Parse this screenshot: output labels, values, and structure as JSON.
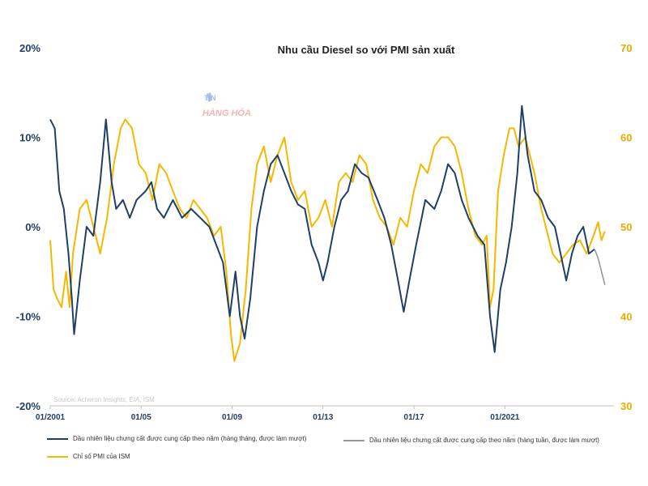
{
  "chart_data": {
    "type": "line",
    "title": "Nhu cầu Diesel so với PMI sản xuất",
    "source": "Source: Acheron Insights, EIA, ISM",
    "watermark": "TIN HÀNG HÓA",
    "x_tick_labels": [
      "01/2001",
      "01/05",
      "01/09",
      "01/13",
      "01/17",
      "01/2021"
    ],
    "x_tick_years": [
      2001,
      2005,
      2009,
      2013,
      2017,
      2021
    ],
    "xlim": [
      2001.0,
      2025.8
    ],
    "y_left": {
      "ticks": [
        "20%",
        "10%",
        "0%",
        "-10%",
        "-20%"
      ],
      "tick_values": [
        20,
        10,
        0,
        -10,
        -20
      ],
      "ylim": [
        -20,
        20
      ]
    },
    "y_right": {
      "ticks": [
        "70",
        "60",
        "50",
        "40",
        "30"
      ],
      "tick_values": [
        70,
        60,
        50,
        40,
        30
      ],
      "ylim": [
        30,
        70
      ]
    },
    "colors": {
      "diesel_monthly": "#1f3f66",
      "diesel_weekly": "#9a9a9a",
      "pmi": "#f5b800",
      "left_axis": "#1f3f66",
      "right_axis": "#e6ac00"
    },
    "series": [
      {
        "name": "Dầu nhiên liệu chưng cất được cung cấp theo năm (hàng tháng, được làm mượt)",
        "axis": "left",
        "points": [
          [
            2001.0,
            12
          ],
          [
            2001.2,
            11
          ],
          [
            2001.4,
            4
          ],
          [
            2001.6,
            2
          ],
          [
            2001.8,
            -3
          ],
          [
            2001.95,
            -8
          ],
          [
            2002.05,
            -12
          ],
          [
            2002.3,
            -6
          ],
          [
            2002.6,
            0
          ],
          [
            2002.9,
            -1
          ],
          [
            2003.2,
            5
          ],
          [
            2003.45,
            12
          ],
          [
            2003.7,
            5
          ],
          [
            2003.9,
            2
          ],
          [
            2004.2,
            3
          ],
          [
            2004.5,
            1
          ],
          [
            2004.8,
            3
          ],
          [
            2005.2,
            4
          ],
          [
            2005.45,
            5
          ],
          [
            2005.7,
            2
          ],
          [
            2006.0,
            1
          ],
          [
            2006.4,
            3
          ],
          [
            2006.8,
            1
          ],
          [
            2007.2,
            2
          ],
          [
            2007.6,
            1
          ],
          [
            2008.0,
            0
          ],
          [
            2008.3,
            -2
          ],
          [
            2008.6,
            -4
          ],
          [
            2008.9,
            -10
          ],
          [
            2009.15,
            -5
          ],
          [
            2009.35,
            -10
          ],
          [
            2009.55,
            -12.5
          ],
          [
            2009.8,
            -8
          ],
          [
            2010.1,
            0
          ],
          [
            2010.4,
            4
          ],
          [
            2010.7,
            7
          ],
          [
            2011.0,
            8
          ],
          [
            2011.3,
            6
          ],
          [
            2011.6,
            4
          ],
          [
            2011.9,
            2.5
          ],
          [
            2012.2,
            2
          ],
          [
            2012.5,
            -2
          ],
          [
            2012.8,
            -4
          ],
          [
            2013.0,
            -6
          ],
          [
            2013.2,
            -4
          ],
          [
            2013.5,
            0
          ],
          [
            2013.8,
            3
          ],
          [
            2014.1,
            4
          ],
          [
            2014.4,
            7
          ],
          [
            2014.7,
            6
          ],
          [
            2015.0,
            5.5
          ],
          [
            2015.4,
            3
          ],
          [
            2015.7,
            1
          ],
          [
            2016.0,
            -2
          ],
          [
            2016.3,
            -6
          ],
          [
            2016.55,
            -9.5
          ],
          [
            2016.8,
            -6
          ],
          [
            2017.1,
            -2
          ],
          [
            2017.5,
            3
          ],
          [
            2017.9,
            2
          ],
          [
            2018.2,
            4
          ],
          [
            2018.5,
            7
          ],
          [
            2018.8,
            6
          ],
          [
            2019.1,
            3
          ],
          [
            2019.4,
            1
          ],
          [
            2019.8,
            -1
          ],
          [
            2020.1,
            -2
          ],
          [
            2020.35,
            -10
          ],
          [
            2020.55,
            -14
          ],
          [
            2020.8,
            -7
          ],
          [
            2021.05,
            -4
          ],
          [
            2021.3,
            0
          ],
          [
            2021.55,
            6
          ],
          [
            2021.75,
            13.5
          ],
          [
            2022.0,
            8
          ],
          [
            2022.3,
            4
          ],
          [
            2022.6,
            3
          ],
          [
            2022.9,
            1
          ],
          [
            2023.2,
            0
          ],
          [
            2023.45,
            -3
          ],
          [
            2023.7,
            -6
          ],
          [
            2023.95,
            -3
          ],
          [
            2024.2,
            -1
          ],
          [
            2024.45,
            0
          ],
          [
            2024.7,
            -3
          ],
          [
            2024.95,
            -2.5
          ]
        ]
      },
      {
        "name": "Dầu nhiên liệu chưng cất được cung cấp theo năm (hàng tuần, được làm mượt)",
        "axis": "left",
        "points": [
          [
            2024.95,
            -2.5
          ],
          [
            2025.1,
            -3.5
          ],
          [
            2025.25,
            -5
          ],
          [
            2025.4,
            -6.5
          ]
        ]
      },
      {
        "name": "Chỉ số PMI của ISM",
        "axis": "right",
        "points": [
          [
            2001.0,
            48.5
          ],
          [
            2001.15,
            43
          ],
          [
            2001.3,
            42
          ],
          [
            2001.5,
            41
          ],
          [
            2001.7,
            45
          ],
          [
            2001.85,
            41
          ],
          [
            2002.0,
            47
          ],
          [
            2002.3,
            52
          ],
          [
            2002.6,
            53
          ],
          [
            2002.9,
            50
          ],
          [
            2003.2,
            47
          ],
          [
            2003.5,
            51
          ],
          [
            2003.8,
            57
          ],
          [
            2004.1,
            61
          ],
          [
            2004.3,
            62
          ],
          [
            2004.6,
            61
          ],
          [
            2004.9,
            57
          ],
          [
            2005.2,
            56
          ],
          [
            2005.5,
            53
          ],
          [
            2005.8,
            57
          ],
          [
            2006.1,
            56
          ],
          [
            2006.4,
            54
          ],
          [
            2006.7,
            52
          ],
          [
            2007.0,
            51
          ],
          [
            2007.3,
            53
          ],
          [
            2007.6,
            52
          ],
          [
            2007.9,
            51
          ],
          [
            2008.2,
            49
          ],
          [
            2008.5,
            50
          ],
          [
            2008.75,
            45
          ],
          [
            2008.95,
            38
          ],
          [
            2009.1,
            35
          ],
          [
            2009.35,
            37
          ],
          [
            2009.6,
            43
          ],
          [
            2009.85,
            52
          ],
          [
            2010.1,
            57
          ],
          [
            2010.4,
            59
          ],
          [
            2010.7,
            55
          ],
          [
            2011.0,
            58
          ],
          [
            2011.3,
            60
          ],
          [
            2011.6,
            55
          ],
          [
            2011.9,
            53
          ],
          [
            2012.2,
            54
          ],
          [
            2012.5,
            50
          ],
          [
            2012.8,
            51
          ],
          [
            2013.1,
            53
          ],
          [
            2013.4,
            50
          ],
          [
            2013.7,
            55
          ],
          [
            2014.0,
            56
          ],
          [
            2014.3,
            55
          ],
          [
            2014.6,
            58
          ],
          [
            2014.9,
            57
          ],
          [
            2015.2,
            53
          ],
          [
            2015.5,
            51
          ],
          [
            2015.8,
            50
          ],
          [
            2016.1,
            48
          ],
          [
            2016.4,
            51
          ],
          [
            2016.7,
            50
          ],
          [
            2017.0,
            54
          ],
          [
            2017.3,
            57
          ],
          [
            2017.6,
            56
          ],
          [
            2017.9,
            59
          ],
          [
            2018.2,
            60
          ],
          [
            2018.5,
            60
          ],
          [
            2018.8,
            59
          ],
          [
            2019.1,
            56
          ],
          [
            2019.4,
            52
          ],
          [
            2019.7,
            49
          ],
          [
            2020.0,
            48
          ],
          [
            2020.2,
            49
          ],
          [
            2020.35,
            41
          ],
          [
            2020.5,
            43
          ],
          [
            2020.7,
            54
          ],
          [
            2020.95,
            58
          ],
          [
            2021.2,
            61
          ],
          [
            2021.4,
            61
          ],
          [
            2021.6,
            59
          ],
          [
            2021.9,
            60
          ],
          [
            2022.1,
            58
          ],
          [
            2022.3,
            56
          ],
          [
            2022.6,
            52
          ],
          [
            2022.9,
            49
          ],
          [
            2023.1,
            47
          ],
          [
            2023.4,
            46
          ],
          [
            2023.7,
            47
          ],
          [
            2024.0,
            48
          ],
          [
            2024.3,
            48.5
          ],
          [
            2024.6,
            47
          ],
          [
            2024.9,
            49
          ],
          [
            2025.1,
            50.5
          ],
          [
            2025.25,
            48.5
          ],
          [
            2025.4,
            49.5
          ]
        ]
      }
    ]
  },
  "legend": {
    "diesel_monthly": "Dầu nhiên liệu chưng cất được cung cấp theo năm (hàng tháng, được làm mượt)",
    "diesel_weekly": "Dầu nhiên liệu chưng cất được cung cấp theo năm (hàng tuần, được làm mượt)",
    "pmi": "Chỉ số PMI của ISM"
  }
}
